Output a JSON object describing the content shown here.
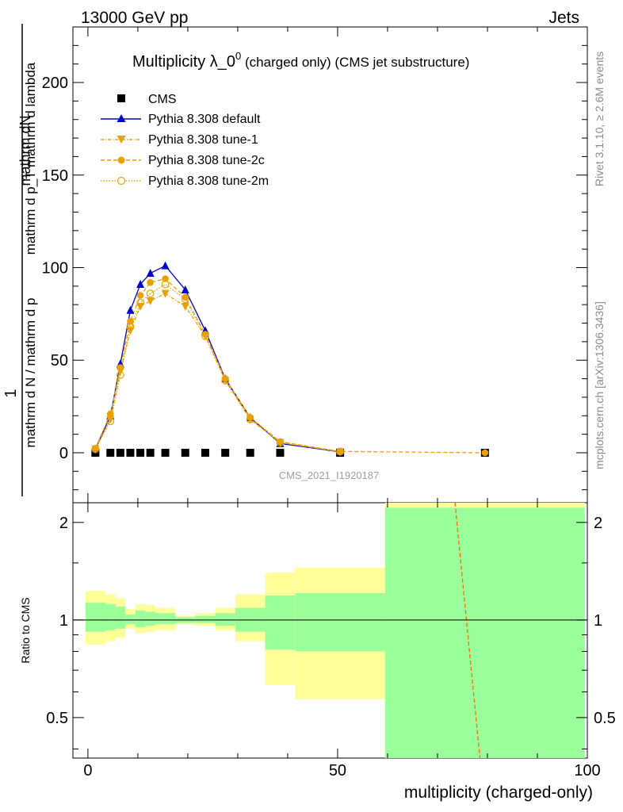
{
  "header": {
    "energy_label": "13000 GeV pp",
    "category_label": "Jets",
    "rivet_label": "Rivet 3.1.10, ≥ 2.6M events",
    "mcplots_label": "mcplots.cern.ch [arXiv:1306.3436]",
    "watermark": "CMS_2021_I1920187"
  },
  "chart_data": [
    {
      "type": "scatter",
      "title_main": "Multiplicity λ_0",
      "title_sup": "0",
      "title_rest": " (charged only) (CMS jet substructure)",
      "ylabel_top": "1",
      "ylabel_top2": "mathrm dN",
      "ylabel_bottom": "mathrm d N / mathrm d p",
      "ylabel_bottom2": "mathrm d p",
      "ylabel_main": "mathrm d p_T mathrm d lambda",
      "ylim": [
        -27,
        230
      ],
      "yticks": [
        0,
        50,
        100,
        150,
        200
      ],
      "xlim": [
        -3,
        100
      ],
      "series": [
        {
          "name": "CMS",
          "color": "#000000",
          "marker": "square",
          "x": [
            1.5,
            4.5,
            6.5,
            8.5,
            10.5,
            12.5,
            15.5,
            19.5,
            23.5,
            27.5,
            32.5,
            38.5,
            50.5,
            79.5
          ],
          "y": [
            0,
            0,
            0,
            0,
            0,
            0,
            0,
            0,
            0,
            0,
            0,
            0,
            0,
            0
          ]
        },
        {
          "name": "Pythia 8.308 default",
          "color": "#0000cc",
          "marker": "triangle-up",
          "x": [
            1.5,
            4.5,
            6.5,
            8.5,
            10.5,
            12.5,
            15.5,
            19.5,
            23.5,
            27.5,
            32.5,
            38.5,
            50.5
          ],
          "y": [
            2,
            20,
            48,
            77,
            91,
            97,
            101,
            88,
            66,
            40,
            19,
            5,
            0.5
          ]
        },
        {
          "name": "Pythia 8.308 tune-1",
          "color": "#e8a200",
          "marker": "triangle-down",
          "x": [
            1.5,
            4.5,
            6.5,
            8.5,
            10.5,
            12.5,
            15.5,
            19.5,
            23.5,
            27.5,
            32.5,
            38.5,
            50.5
          ],
          "y": [
            2,
            18,
            44,
            66,
            79,
            82,
            86,
            79,
            63,
            39,
            18,
            5.5,
            0.6
          ]
        },
        {
          "name": "Pythia 8.308 tune-2c",
          "color": "#e8a200",
          "marker": "circle",
          "x": [
            1.5,
            4.5,
            6.5,
            8.5,
            10.5,
            12.5,
            15.5,
            19.5,
            23.5,
            27.5,
            32.5,
            38.5,
            50.5,
            79.5
          ],
          "y": [
            2.5,
            21,
            46,
            71,
            85,
            92,
            94,
            84,
            64,
            40,
            19,
            6,
            0.7,
            0
          ]
        },
        {
          "name": "Pythia 8.308 tune-2m",
          "color": "#e8a200",
          "marker": "circle-open",
          "x": [
            1.5,
            4.5,
            6.5,
            8.5,
            10.5,
            12.5,
            15.5,
            19.5,
            23.5,
            27.5,
            32.5,
            38.5,
            50.5
          ],
          "y": [
            2,
            17,
            42,
            68,
            81,
            86,
            91,
            83,
            63,
            39,
            18,
            5.5,
            0.6
          ]
        }
      ]
    },
    {
      "type": "area",
      "ylabel": "Ratio to CMS",
      "xlabel": "multiplicity (charged-only)",
      "xticks": [
        0,
        50,
        100
      ],
      "ylim": [
        0.375,
        2.3
      ],
      "yticks": [
        0.5,
        1,
        2
      ],
      "reference_line": 1,
      "bands": [
        {
          "x0": -0.5,
          "x1": 3.5,
          "y_lo": 0.84,
          "y_hi": 1.23,
          "g_lo": 0.92,
          "g_hi": 1.13
        },
        {
          "x0": 3.5,
          "x1": 5.5,
          "y_lo": 0.86,
          "y_hi": 1.2,
          "g_lo": 0.93,
          "g_hi": 1.12
        },
        {
          "x0": 5.5,
          "x1": 7.5,
          "y_lo": 0.88,
          "y_hi": 1.17,
          "g_lo": 0.94,
          "g_hi": 1.1
        },
        {
          "x0": 7.5,
          "x1": 9.5,
          "y_lo": 0.94,
          "y_hi": 1.08,
          "g_lo": 0.97,
          "g_hi": 1.04
        },
        {
          "x0": 9.5,
          "x1": 11.5,
          "y_lo": 0.91,
          "y_hi": 1.12,
          "g_lo": 0.95,
          "g_hi": 1.07
        },
        {
          "x0": 11.5,
          "x1": 13.5,
          "y_lo": 0.92,
          "y_hi": 1.11,
          "g_lo": 0.96,
          "g_hi": 1.06
        },
        {
          "x0": 13.5,
          "x1": 17.5,
          "y_lo": 0.93,
          "y_hi": 1.09,
          "g_lo": 0.97,
          "g_hi": 1.05
        },
        {
          "x0": 17.5,
          "x1": 21.5,
          "y_lo": 0.97,
          "y_hi": 1.03,
          "g_lo": 0.98,
          "g_hi": 1.02
        },
        {
          "x0": 21.5,
          "x1": 25.5,
          "y_lo": 0.96,
          "y_hi": 1.05,
          "g_lo": 0.98,
          "g_hi": 1.03
        },
        {
          "x0": 25.5,
          "x1": 29.5,
          "y_lo": 0.93,
          "y_hi": 1.09,
          "g_lo": 0.96,
          "g_hi": 1.05
        },
        {
          "x0": 29.5,
          "x1": 35.5,
          "y_lo": 0.86,
          "y_hi": 1.2,
          "g_lo": 0.92,
          "g_hi": 1.09
        },
        {
          "x0": 35.5,
          "x1": 41.5,
          "y_lo": 0.63,
          "y_hi": 1.4,
          "g_lo": 0.81,
          "g_hi": 1.19
        },
        {
          "x0": 41.5,
          "x1": 59.5,
          "y_lo": 0.57,
          "y_hi": 1.45,
          "g_lo": 0.8,
          "g_hi": 1.21
        },
        {
          "x0": 59.5,
          "x1": 99.5,
          "y_lo": 0.375,
          "y_hi": 2.3,
          "g_lo": 0.375,
          "g_hi": 2.22
        }
      ],
      "ratio_lines": [
        {
          "name": "Pythia 8.308 tune-2c",
          "color": "#e8a200",
          "x": [
            73.5,
            78.5
          ],
          "y": [
            2.3,
            0.375
          ]
        }
      ]
    }
  ]
}
